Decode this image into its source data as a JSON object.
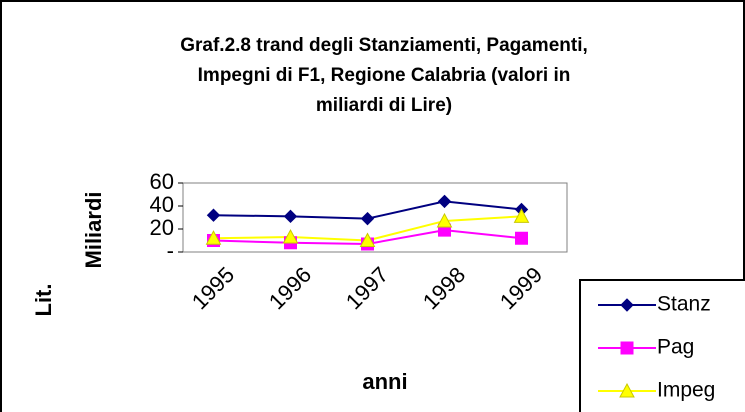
{
  "chart_data": {
    "type": "line",
    "title": [
      "Graf.2.8 trand degli Stanziamenti, Pagamenti,",
      "Impegni di F1, Regione Calabria (valori in",
      "miliardi di Lire)"
    ],
    "y_label": [
      "Lit.",
      "Miliardi"
    ],
    "x_label": "anni",
    "categories": [
      "1995",
      "1996",
      "1997",
      "1998",
      "1999"
    ],
    "series": [
      {
        "name": "Stanz",
        "color": "#000080",
        "marker": "diamond",
        "values": [
          32,
          31,
          29,
          44,
          37
        ]
      },
      {
        "name": "Pag",
        "color": "#ff00ff",
        "marker": "square",
        "values": [
          10,
          8,
          7,
          19,
          12
        ]
      },
      {
        "name": "Impeg",
        "color": "#ffff00",
        "marker": "triangle",
        "values": [
          12,
          13,
          10,
          27,
          31
        ]
      }
    ],
    "ylim": [
      0,
      60
    ],
    "yticks": [
      {
        "value": 0,
        "label": "-"
      },
      20,
      40,
      60
    ],
    "grid": false,
    "legend": "bottom-right"
  }
}
